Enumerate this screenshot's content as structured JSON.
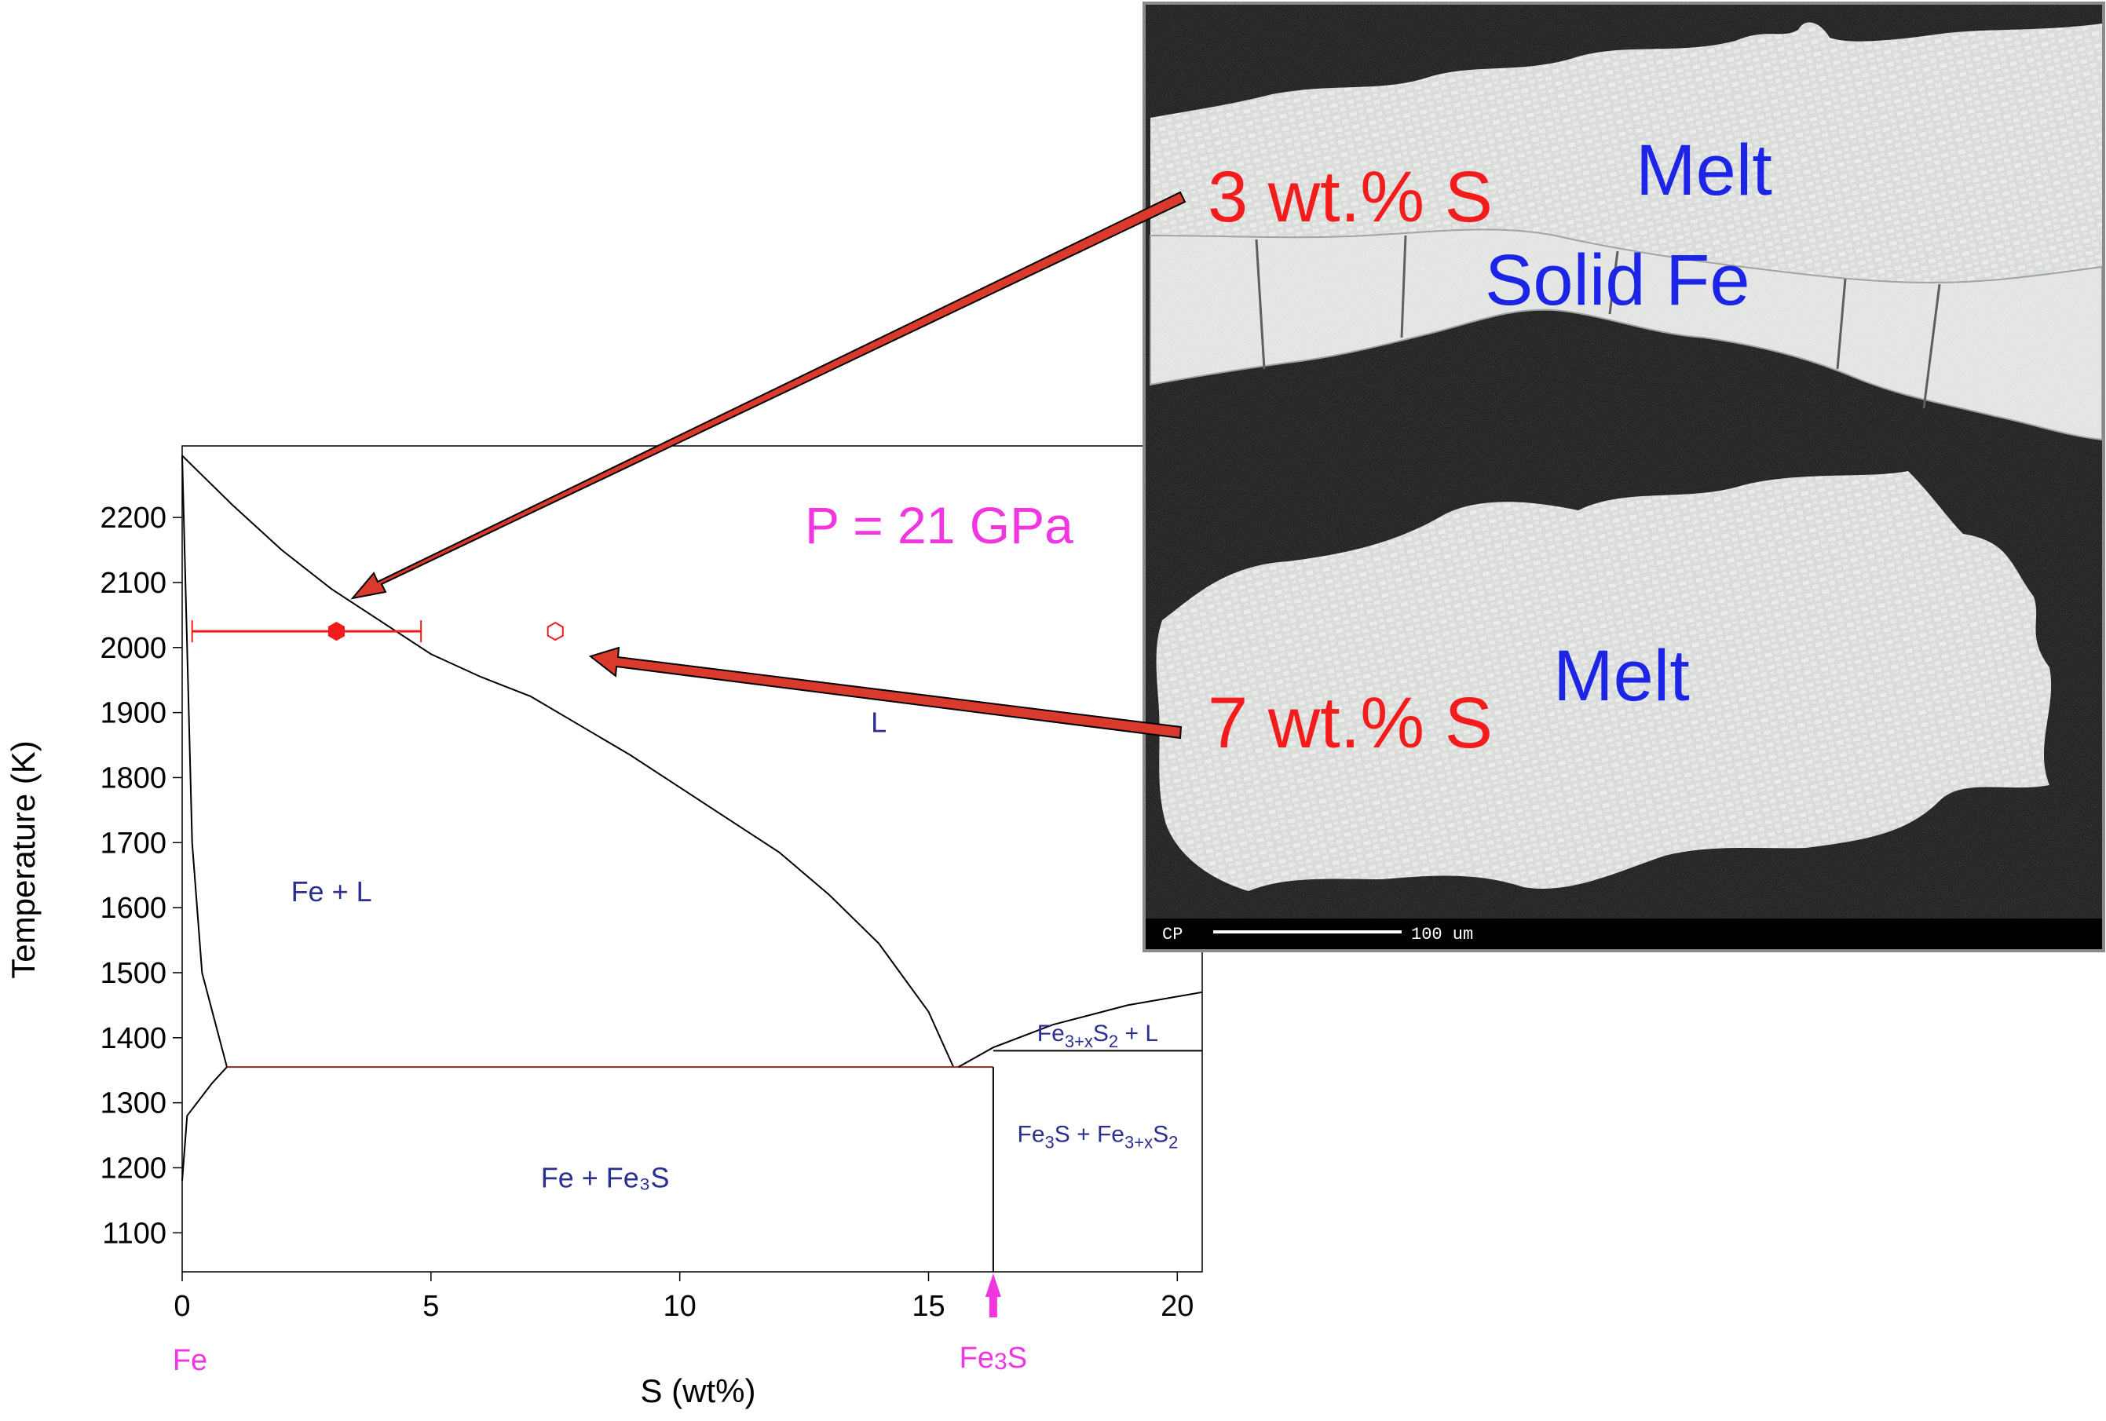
{
  "chart_data": {
    "type": "scatter",
    "title": "",
    "annotation_pressure": "P = 21 GPa",
    "xlabel": "S (wt%)",
    "ylabel": "Temperature (K)",
    "xlim": [
      0,
      20.5
    ],
    "ylim": [
      1040,
      2310
    ],
    "xticks": [
      0,
      5,
      10,
      15,
      20
    ],
    "yticks": [
      1100,
      1200,
      1300,
      1400,
      1500,
      1600,
      1700,
      1800,
      1900,
      2000,
      2100,
      2200
    ],
    "composition_labels": {
      "fe": "Fe",
      "fe3s": "Fe3S"
    },
    "composition_markers": [
      {
        "label": "Fe",
        "x": 0
      },
      {
        "label": "Fe3S",
        "x": 16.3
      }
    ],
    "phase_boundaries": [
      {
        "name": "liquidus",
        "points": [
          [
            0,
            2295
          ],
          [
            1,
            2220
          ],
          [
            2,
            2150
          ],
          [
            3,
            2090
          ],
          [
            4,
            2040
          ],
          [
            5,
            1990
          ],
          [
            6,
            1955
          ],
          [
            7,
            1925
          ],
          [
            8,
            1880
          ],
          [
            9,
            1835
          ],
          [
            10,
            1785
          ],
          [
            11,
            1735
          ],
          [
            12,
            1685
          ],
          [
            13,
            1620
          ],
          [
            14,
            1545
          ],
          [
            15,
            1440
          ],
          [
            15.5,
            1355
          ]
        ]
      },
      {
        "name": "fe-solidus",
        "points": [
          [
            0,
            2295
          ],
          [
            0.1,
            2000
          ],
          [
            0.2,
            1700
          ],
          [
            0.4,
            1500
          ],
          [
            0.9,
            1355
          ]
        ]
      },
      {
        "name": "fe-solvus",
        "points": [
          [
            0,
            1180
          ],
          [
            0.1,
            1280
          ],
          [
            0.6,
            1330
          ],
          [
            0.9,
            1355
          ]
        ]
      },
      {
        "name": "eutectic",
        "points": [
          [
            0.9,
            1355
          ],
          [
            16.3,
            1355
          ]
        ]
      },
      {
        "name": "fe3s-line",
        "points": [
          [
            16.3,
            1040
          ],
          [
            16.3,
            1355
          ]
        ]
      },
      {
        "name": "fe3xs2-liquidus",
        "points": [
          [
            15.6,
            1355
          ],
          [
            16.3,
            1385
          ],
          [
            17.5,
            1420
          ],
          [
            19,
            1450
          ],
          [
            20.5,
            1470
          ]
        ]
      },
      {
        "name": "peritectic",
        "points": [
          [
            16.3,
            1380
          ],
          [
            20.5,
            1380
          ]
        ]
      }
    ],
    "regions": [
      {
        "label": "L",
        "x": 14,
        "y": 1870
      },
      {
        "label": "Fe + L",
        "x": 3,
        "y": 1610
      },
      {
        "label": "Fe + Fe3S",
        "x": 8.5,
        "y": 1170
      }
    ],
    "region_fe3xs2_l": {
      "a": "Fe",
      "b": "3+x",
      "c": "S",
      "d": "2",
      "e": " + L"
    },
    "region_fe3s_fe3xs2": {
      "a": "Fe",
      "b": "3",
      "c": "S + Fe",
      "d": "3+x",
      "e": "S",
      "f": "2"
    },
    "series": [
      {
        "marker": "filled-hexagon",
        "x": 3.1,
        "y": 2025,
        "xerr_low": 0.2,
        "xerr_high": 4.8
      },
      {
        "marker": "open-hexagon",
        "x": 7.5,
        "y": 2025
      }
    ],
    "colors": {
      "data": "#f21c1c",
      "region_text": "#2b2f8f",
      "annotation": "#ef36e0",
      "micro_blue": "#1c24e6"
    }
  },
  "micrograph": {
    "labels_red": [
      "3 wt.% S",
      "7 wt.% S"
    ],
    "labels_blue": [
      "Melt",
      "Solid Fe",
      "Melt"
    ],
    "scale_prefix": "CP",
    "scale_label": "100 um"
  }
}
